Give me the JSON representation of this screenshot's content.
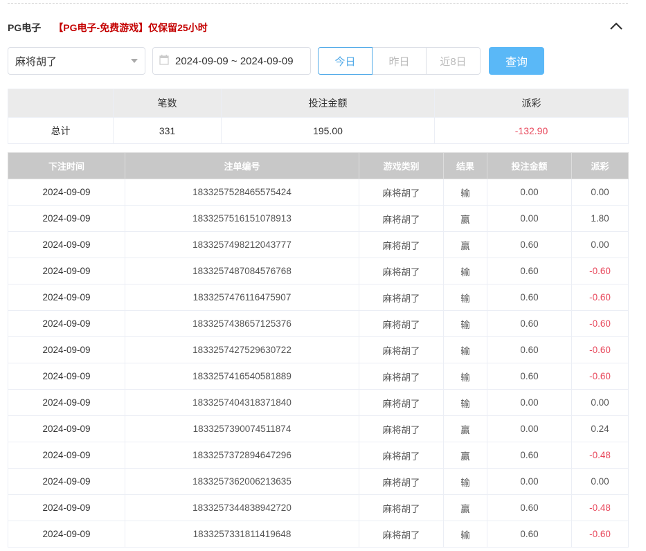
{
  "header": {
    "platform": "PG电子",
    "notice": "【PG电子-免费游戏】仅保留25小时"
  },
  "filters": {
    "game": "麻将胡了",
    "date_range": "2024-09-09 ~ 2024-09-09",
    "quick": [
      "今日",
      "昨日",
      "近8日"
    ],
    "query": "查询"
  },
  "summary": {
    "headers": [
      "",
      "笔数",
      "投注金额",
      "派彩"
    ],
    "row": [
      "总计",
      "331",
      "195.00",
      "-132.90"
    ]
  },
  "colors": {
    "accent": "#5ab8f7",
    "negative": "#e8475b",
    "notice": "#c40000"
  },
  "detail": {
    "headers": [
      "下注时间",
      "注单编号",
      "游戏类别",
      "结果",
      "投注金额",
      "派彩"
    ],
    "rows": [
      [
        "2024-09-09",
        "1833257528465575424",
        "麻将胡了",
        "输",
        "0.00",
        "0.00"
      ],
      [
        "2024-09-09",
        "1833257516151078913",
        "麻将胡了",
        "赢",
        "0.00",
        "1.80"
      ],
      [
        "2024-09-09",
        "1833257498212043777",
        "麻将胡了",
        "赢",
        "0.60",
        "0.00"
      ],
      [
        "2024-09-09",
        "1833257487084576768",
        "麻将胡了",
        "输",
        "0.60",
        "-0.60"
      ],
      [
        "2024-09-09",
        "1833257476116475907",
        "麻将胡了",
        "输",
        "0.60",
        "-0.60"
      ],
      [
        "2024-09-09",
        "1833257438657125376",
        "麻将胡了",
        "输",
        "0.60",
        "-0.60"
      ],
      [
        "2024-09-09",
        "1833257427529630722",
        "麻将胡了",
        "输",
        "0.60",
        "-0.60"
      ],
      [
        "2024-09-09",
        "1833257416540581889",
        "麻将胡了",
        "输",
        "0.60",
        "-0.60"
      ],
      [
        "2024-09-09",
        "1833257404318371840",
        "麻将胡了",
        "输",
        "0.00",
        "0.00"
      ],
      [
        "2024-09-09",
        "1833257390074511874",
        "麻将胡了",
        "赢",
        "0.00",
        "0.24"
      ],
      [
        "2024-09-09",
        "1833257372894647296",
        "麻将胡了",
        "赢",
        "0.60",
        "-0.48"
      ],
      [
        "2024-09-09",
        "1833257362006213635",
        "麻将胡了",
        "输",
        "0.00",
        "0.00"
      ],
      [
        "2024-09-09",
        "1833257344838942720",
        "麻将胡了",
        "赢",
        "0.60",
        "-0.48"
      ],
      [
        "2024-09-09",
        "1833257331811419648",
        "麻将胡了",
        "输",
        "0.60",
        "-0.60"
      ]
    ]
  }
}
